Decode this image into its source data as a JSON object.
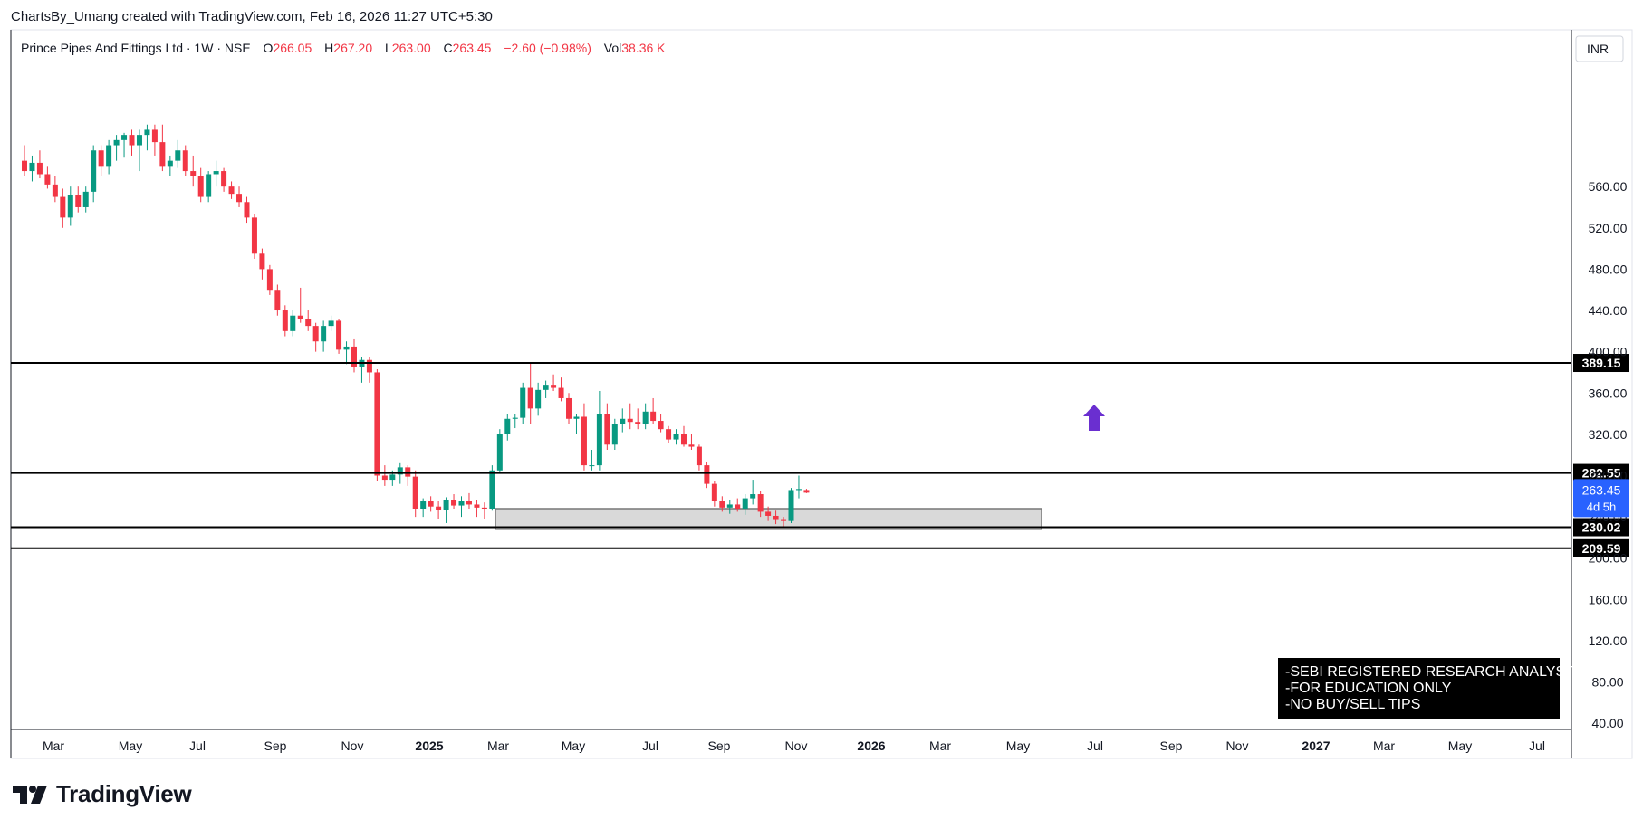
{
  "header": "ChartsBy_Umang created with TradingView.com, Feb 16, 2026 11:27 UTC+5:30",
  "brand": "TradingView",
  "legend": {
    "symbol": "Prince Pipes And Fittings Ltd · 1W · NSE",
    "o_label": "O",
    "o": "266.05",
    "h_label": "H",
    "h": "267.20",
    "l_label": "L",
    "l": "263.00",
    "c_label": "C",
    "c": "263.45",
    "change": "−2.60 (−0.98%)",
    "vol_label": "Vol",
    "vol": "38.36 K"
  },
  "currency": "INR",
  "disclaimer": [
    "-SEBI REGISTERED RESEARCH ANALYST",
    "-FOR EDUCATION ONLY",
    "-NO BUY/SELL TIPS"
  ],
  "price_label": {
    "price": "263.45",
    "countdown": "4d 5h"
  },
  "colors": {
    "up": "#089981",
    "down": "#f23645",
    "line": "#000000",
    "arrow": "#6a2fd0",
    "current": "#2962ff"
  },
  "chart_data": {
    "type": "candlestick",
    "y_ticks": [
      40,
      80,
      120,
      160,
      200,
      240,
      280,
      320,
      360,
      400,
      440,
      480,
      520,
      560
    ],
    "x_ticks": [
      "Mar",
      "May",
      "Jul",
      "Sep",
      "Nov",
      "2025",
      "Mar",
      "May",
      "Jul",
      "Sep",
      "Nov",
      "2026",
      "Mar",
      "May",
      "Jul",
      "Sep",
      "Nov",
      "2027",
      "Mar",
      "May",
      "Jul"
    ],
    "horizontal_levels": [
      389.15,
      282.55,
      230.02,
      209.59
    ],
    "support_zone": {
      "low": 228,
      "high": 248,
      "from": "2025-03",
      "to": "2026-06"
    },
    "arrow": {
      "direction": "up",
      "at": "2026-07"
    },
    "candles": [
      {
        "o": 585,
        "h": 600,
        "l": 570,
        "c": 575
      },
      {
        "o": 575,
        "h": 590,
        "l": 565,
        "c": 583
      },
      {
        "o": 583,
        "h": 595,
        "l": 568,
        "c": 572
      },
      {
        "o": 572,
        "h": 580,
        "l": 558,
        "c": 562
      },
      {
        "o": 562,
        "h": 570,
        "l": 545,
        "c": 550
      },
      {
        "o": 550,
        "h": 558,
        "l": 520,
        "c": 530
      },
      {
        "o": 530,
        "h": 560,
        "l": 522,
        "c": 552
      },
      {
        "o": 552,
        "h": 560,
        "l": 535,
        "c": 540
      },
      {
        "o": 540,
        "h": 560,
        "l": 535,
        "c": 555
      },
      {
        "o": 555,
        "h": 600,
        "l": 545,
        "c": 595
      },
      {
        "o": 595,
        "h": 600,
        "l": 570,
        "c": 580
      },
      {
        "o": 580,
        "h": 605,
        "l": 572,
        "c": 600
      },
      {
        "o": 600,
        "h": 610,
        "l": 585,
        "c": 605
      },
      {
        "o": 605,
        "h": 612,
        "l": 588,
        "c": 610
      },
      {
        "o": 610,
        "h": 615,
        "l": 590,
        "c": 600
      },
      {
        "o": 600,
        "h": 615,
        "l": 575,
        "c": 610
      },
      {
        "o": 610,
        "h": 620,
        "l": 595,
        "c": 615
      },
      {
        "o": 615,
        "h": 620,
        "l": 590,
        "c": 603
      },
      {
        "o": 603,
        "h": 620,
        "l": 575,
        "c": 580
      },
      {
        "o": 580,
        "h": 590,
        "l": 570,
        "c": 585
      },
      {
        "o": 585,
        "h": 605,
        "l": 578,
        "c": 595
      },
      {
        "o": 595,
        "h": 600,
        "l": 570,
        "c": 575
      },
      {
        "o": 575,
        "h": 590,
        "l": 560,
        "c": 570
      },
      {
        "o": 570,
        "h": 578,
        "l": 545,
        "c": 550
      },
      {
        "o": 550,
        "h": 575,
        "l": 545,
        "c": 572
      },
      {
        "o": 572,
        "h": 585,
        "l": 560,
        "c": 575
      },
      {
        "o": 575,
        "h": 578,
        "l": 555,
        "c": 560
      },
      {
        "o": 560,
        "h": 565,
        "l": 548,
        "c": 553
      },
      {
        "o": 553,
        "h": 560,
        "l": 540,
        "c": 545
      },
      {
        "o": 545,
        "h": 550,
        "l": 525,
        "c": 530
      },
      {
        "o": 530,
        "h": 533,
        "l": 490,
        "c": 495
      },
      {
        "o": 495,
        "h": 500,
        "l": 470,
        "c": 480
      },
      {
        "o": 480,
        "h": 484,
        "l": 455,
        "c": 460
      },
      {
        "o": 460,
        "h": 465,
        "l": 435,
        "c": 440
      },
      {
        "o": 440,
        "h": 445,
        "l": 415,
        "c": 420
      },
      {
        "o": 420,
        "h": 440,
        "l": 415,
        "c": 435
      },
      {
        "o": 435,
        "h": 462,
        "l": 428,
        "c": 432
      },
      {
        "o": 432,
        "h": 440,
        "l": 420,
        "c": 425
      },
      {
        "o": 425,
        "h": 428,
        "l": 400,
        "c": 410
      },
      {
        "o": 410,
        "h": 430,
        "l": 400,
        "c": 425
      },
      {
        "o": 425,
        "h": 435,
        "l": 420,
        "c": 430
      },
      {
        "o": 430,
        "h": 432,
        "l": 398,
        "c": 402
      },
      {
        "o": 402,
        "h": 410,
        "l": 388,
        "c": 405
      },
      {
        "o": 405,
        "h": 412,
        "l": 380,
        "c": 385
      },
      {
        "o": 385,
        "h": 395,
        "l": 370,
        "c": 392
      },
      {
        "o": 392,
        "h": 395,
        "l": 370,
        "c": 380
      },
      {
        "o": 380,
        "h": 383,
        "l": 275,
        "c": 280
      },
      {
        "o": 280,
        "h": 290,
        "l": 270,
        "c": 276
      },
      {
        "o": 276,
        "h": 285,
        "l": 270,
        "c": 281
      },
      {
        "o": 281,
        "h": 292,
        "l": 272,
        "c": 288
      },
      {
        "o": 288,
        "h": 290,
        "l": 270,
        "c": 279
      },
      {
        "o": 279,
        "h": 285,
        "l": 240,
        "c": 248
      },
      {
        "o": 248,
        "h": 258,
        "l": 240,
        "c": 255
      },
      {
        "o": 255,
        "h": 260,
        "l": 245,
        "c": 250
      },
      {
        "o": 250,
        "h": 255,
        "l": 238,
        "c": 247
      },
      {
        "o": 247,
        "h": 259,
        "l": 234,
        "c": 256
      },
      {
        "o": 256,
        "h": 262,
        "l": 248,
        "c": 251
      },
      {
        "o": 251,
        "h": 260,
        "l": 240,
        "c": 255
      },
      {
        "o": 255,
        "h": 263,
        "l": 248,
        "c": 252
      },
      {
        "o": 252,
        "h": 256,
        "l": 240,
        "c": 249
      },
      {
        "o": 249,
        "h": 254,
        "l": 238,
        "c": 248
      },
      {
        "o": 248,
        "h": 290,
        "l": 246,
        "c": 285
      },
      {
        "o": 285,
        "h": 325,
        "l": 282,
        "c": 320
      },
      {
        "o": 320,
        "h": 340,
        "l": 314,
        "c": 335
      },
      {
        "o": 335,
        "h": 340,
        "l": 326,
        "c": 336
      },
      {
        "o": 336,
        "h": 370,
        "l": 330,
        "c": 365
      },
      {
        "o": 365,
        "h": 390,
        "l": 330,
        "c": 345
      },
      {
        "o": 345,
        "h": 370,
        "l": 338,
        "c": 363
      },
      {
        "o": 363,
        "h": 372,
        "l": 355,
        "c": 368
      },
      {
        "o": 368,
        "h": 378,
        "l": 362,
        "c": 365
      },
      {
        "o": 365,
        "h": 375,
        "l": 352,
        "c": 355
      },
      {
        "o": 355,
        "h": 360,
        "l": 330,
        "c": 335
      },
      {
        "o": 335,
        "h": 340,
        "l": 320,
        "c": 337
      },
      {
        "o": 337,
        "h": 350,
        "l": 285,
        "c": 290
      },
      {
        "o": 290,
        "h": 305,
        "l": 285,
        "c": 290
      },
      {
        "o": 290,
        "h": 362,
        "l": 285,
        "c": 340
      },
      {
        "o": 340,
        "h": 350,
        "l": 305,
        "c": 310
      },
      {
        "o": 310,
        "h": 335,
        "l": 305,
        "c": 330
      },
      {
        "o": 330,
        "h": 345,
        "l": 322,
        "c": 335
      },
      {
        "o": 335,
        "h": 350,
        "l": 325,
        "c": 332
      },
      {
        "o": 332,
        "h": 345,
        "l": 325,
        "c": 330
      },
      {
        "o": 330,
        "h": 350,
        "l": 325,
        "c": 342
      },
      {
        "o": 342,
        "h": 355,
        "l": 330,
        "c": 333
      },
      {
        "o": 333,
        "h": 340,
        "l": 322,
        "c": 325
      },
      {
        "o": 325,
        "h": 328,
        "l": 312,
        "c": 315
      },
      {
        "o": 315,
        "h": 325,
        "l": 310,
        "c": 320
      },
      {
        "o": 320,
        "h": 328,
        "l": 308,
        "c": 310
      },
      {
        "o": 310,
        "h": 320,
        "l": 305,
        "c": 308
      },
      {
        "o": 308,
        "h": 310,
        "l": 285,
        "c": 290
      },
      {
        "o": 290,
        "h": 293,
        "l": 268,
        "c": 272
      },
      {
        "o": 272,
        "h": 275,
        "l": 250,
        "c": 255
      },
      {
        "o": 255,
        "h": 260,
        "l": 245,
        "c": 249
      },
      {
        "o": 249,
        "h": 256,
        "l": 243,
        "c": 252
      },
      {
        "o": 252,
        "h": 258,
        "l": 245,
        "c": 248
      },
      {
        "o": 248,
        "h": 262,
        "l": 242,
        "c": 258
      },
      {
        "o": 258,
        "h": 276,
        "l": 252,
        "c": 262
      },
      {
        "o": 262,
        "h": 265,
        "l": 240,
        "c": 245
      },
      {
        "o": 245,
        "h": 250,
        "l": 236,
        "c": 241
      },
      {
        "o": 241,
        "h": 246,
        "l": 233,
        "c": 237
      },
      {
        "o": 237,
        "h": 240,
        "l": 230,
        "c": 236
      },
      {
        "o": 236,
        "h": 268,
        "l": 234,
        "c": 266
      },
      {
        "o": 266,
        "h": 280,
        "l": 258,
        "c": 267
      },
      {
        "o": 266.05,
        "h": 267.2,
        "l": 263,
        "c": 263.45
      }
    ]
  }
}
